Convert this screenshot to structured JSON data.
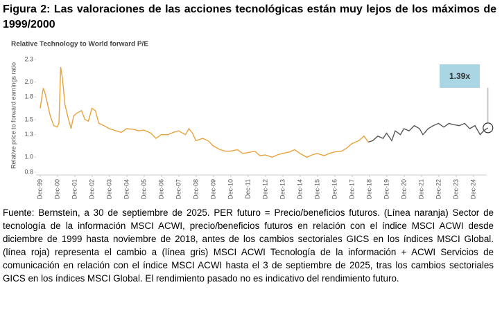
{
  "figure_title": "Figura 2: Las valoraciones de las acciones tecnológicas están muy lejos de los máximos de 1999/2000",
  "chart_data": {
    "type": "line",
    "title": "Relative Technology to World forward P/E",
    "y_label": "Relative price to forward earnings ratio",
    "annotation": "1.39x",
    "xlim": [
      1999.68,
      2025.68
    ],
    "xticks": [
      {
        "value": 1999.917,
        "label": "Dec-99"
      },
      {
        "value": 2000.917,
        "label": "Dec-00"
      },
      {
        "value": 2001.917,
        "label": "Dec-01"
      },
      {
        "value": 2002.917,
        "label": "Dec-02"
      },
      {
        "value": 2003.917,
        "label": "Dec-03"
      },
      {
        "value": 2004.917,
        "label": "Dec-04"
      },
      {
        "value": 2005.917,
        "label": "Dec-05"
      },
      {
        "value": 2006.917,
        "label": "Dec-06"
      },
      {
        "value": 2007.917,
        "label": "Dec-07"
      },
      {
        "value": 2008.917,
        "label": "Dec-08"
      },
      {
        "value": 2009.917,
        "label": "Dec-09"
      },
      {
        "value": 2010.917,
        "label": "Dec-10"
      },
      {
        "value": 2011.917,
        "label": "Dec-11"
      },
      {
        "value": 2012.917,
        "label": "Dec-12"
      },
      {
        "value": 2013.917,
        "label": "Dec-13"
      },
      {
        "value": 2014.917,
        "label": "Dec-14"
      },
      {
        "value": 2015.917,
        "label": "Dec-15"
      },
      {
        "value": 2016.917,
        "label": "Dec-16"
      },
      {
        "value": 2017.917,
        "label": "Dec-17"
      },
      {
        "value": 2018.917,
        "label": "Dec-18"
      },
      {
        "value": 2019.917,
        "label": "Dec-19"
      },
      {
        "value": 2020.917,
        "label": "Dec-20"
      },
      {
        "value": 2021.917,
        "label": "Dec-21"
      },
      {
        "value": 2022.917,
        "label": "Dec-22"
      },
      {
        "value": 2023.917,
        "label": "Dec-23"
      },
      {
        "value": 2024.917,
        "label": "Dec-24"
      }
    ],
    "ylim": [
      0.8,
      2.3
    ],
    "yticks": [
      0.8,
      {
        "value": 1,
        "label": "1.0"
      },
      1.3,
      1.5,
      1.8,
      {
        "value": 2,
        "label": "2.0"
      },
      2.3
    ],
    "series": [
      {
        "color": "#e8a33c",
        "x": [
          1999.92,
          2000.0,
          2000.1,
          2000.2,
          2000.35,
          2000.5,
          2000.7,
          2000.9,
          2001.0,
          2001.05,
          2001.1,
          2001.2,
          2001.35,
          2001.5,
          2001.7,
          2001.85,
          2002.0,
          2002.3,
          2002.5,
          2002.7,
          2002.9,
          2003.1,
          2003.3,
          2003.6,
          2003.9,
          2004.3,
          2004.6,
          2004.9,
          2005.3,
          2005.6,
          2005.9,
          2006.3,
          2006.6,
          2006.9,
          2007.3,
          2007.6,
          2007.9,
          2008.3,
          2008.5,
          2008.7,
          2008.9,
          2009.3,
          2009.6,
          2009.9,
          2010.3,
          2010.6,
          2010.9,
          2011.3,
          2011.6,
          2011.9,
          2012.3,
          2012.6,
          2012.9,
          2013.3,
          2013.6,
          2013.9,
          2014.3,
          2014.6,
          2014.9,
          2015.3,
          2015.6,
          2015.9,
          2016.3,
          2016.6,
          2016.9,
          2017.3,
          2017.6,
          2017.9,
          2018.3,
          2018.6,
          2018.85
        ],
        "values": [
          1.65,
          1.78,
          1.92,
          1.85,
          1.7,
          1.55,
          1.42,
          1.4,
          1.45,
          1.8,
          2.2,
          2.05,
          1.7,
          1.55,
          1.38,
          1.55,
          1.58,
          1.62,
          1.5,
          1.48,
          1.65,
          1.62,
          1.45,
          1.42,
          1.38,
          1.35,
          1.33,
          1.38,
          1.37,
          1.35,
          1.36,
          1.32,
          1.25,
          1.3,
          1.3,
          1.33,
          1.35,
          1.3,
          1.38,
          1.32,
          1.22,
          1.25,
          1.22,
          1.15,
          1.1,
          1.08,
          1.08,
          1.1,
          1.05,
          1.06,
          1.08,
          1.02,
          1.03,
          1.0,
          1.03,
          1.05,
          1.07,
          1.1,
          1.05,
          1.0,
          1.03,
          1.05,
          1.02,
          1.05,
          1.07,
          1.08,
          1.12,
          1.18,
          1.22,
          1.28,
          1.2
        ]
      },
      {
        "color": "#555555",
        "x": [
          2018.85,
          2019.1,
          2019.4,
          2019.7,
          2019.9,
          2020.2,
          2020.4,
          2020.7,
          2020.9,
          2021.2,
          2021.5,
          2021.8,
          2022.0,
          2022.3,
          2022.6,
          2022.9,
          2023.2,
          2023.5,
          2023.8,
          2024.1,
          2024.4,
          2024.7,
          2025.0,
          2025.3,
          2025.5,
          2025.75
        ],
        "values": [
          1.2,
          1.22,
          1.28,
          1.25,
          1.32,
          1.22,
          1.35,
          1.3,
          1.38,
          1.35,
          1.42,
          1.38,
          1.3,
          1.38,
          1.42,
          1.45,
          1.4,
          1.45,
          1.43,
          1.42,
          1.45,
          1.38,
          1.42,
          1.3,
          1.35,
          1.39
        ]
      }
    ]
  },
  "source_note": "Fuente: Bernstein, a 30 de septiembre de 2025. PER futuro = Precio/beneficios futuros. (Línea naranja) Sector de tecnología de la información MSCI ACWI, precio/beneficios futuros en relación con el índice MSCI ACWI desde diciembre de 1999 hasta noviembre de 2018, antes de los cambios sectoriales GICS en los índices MSCI Global. (línea roja) representa el cambio a (línea gris) MSCI ACWI Tecnología de la información + ACWI Servicios de comunicación en relación con el índice MSCI ACWI hasta el 3 de septiembre de 2025, tras los cambios sectoriales GICS en los índices MSCI Global. El rendimiento pasado no es indicativo del rendimiento futuro."
}
